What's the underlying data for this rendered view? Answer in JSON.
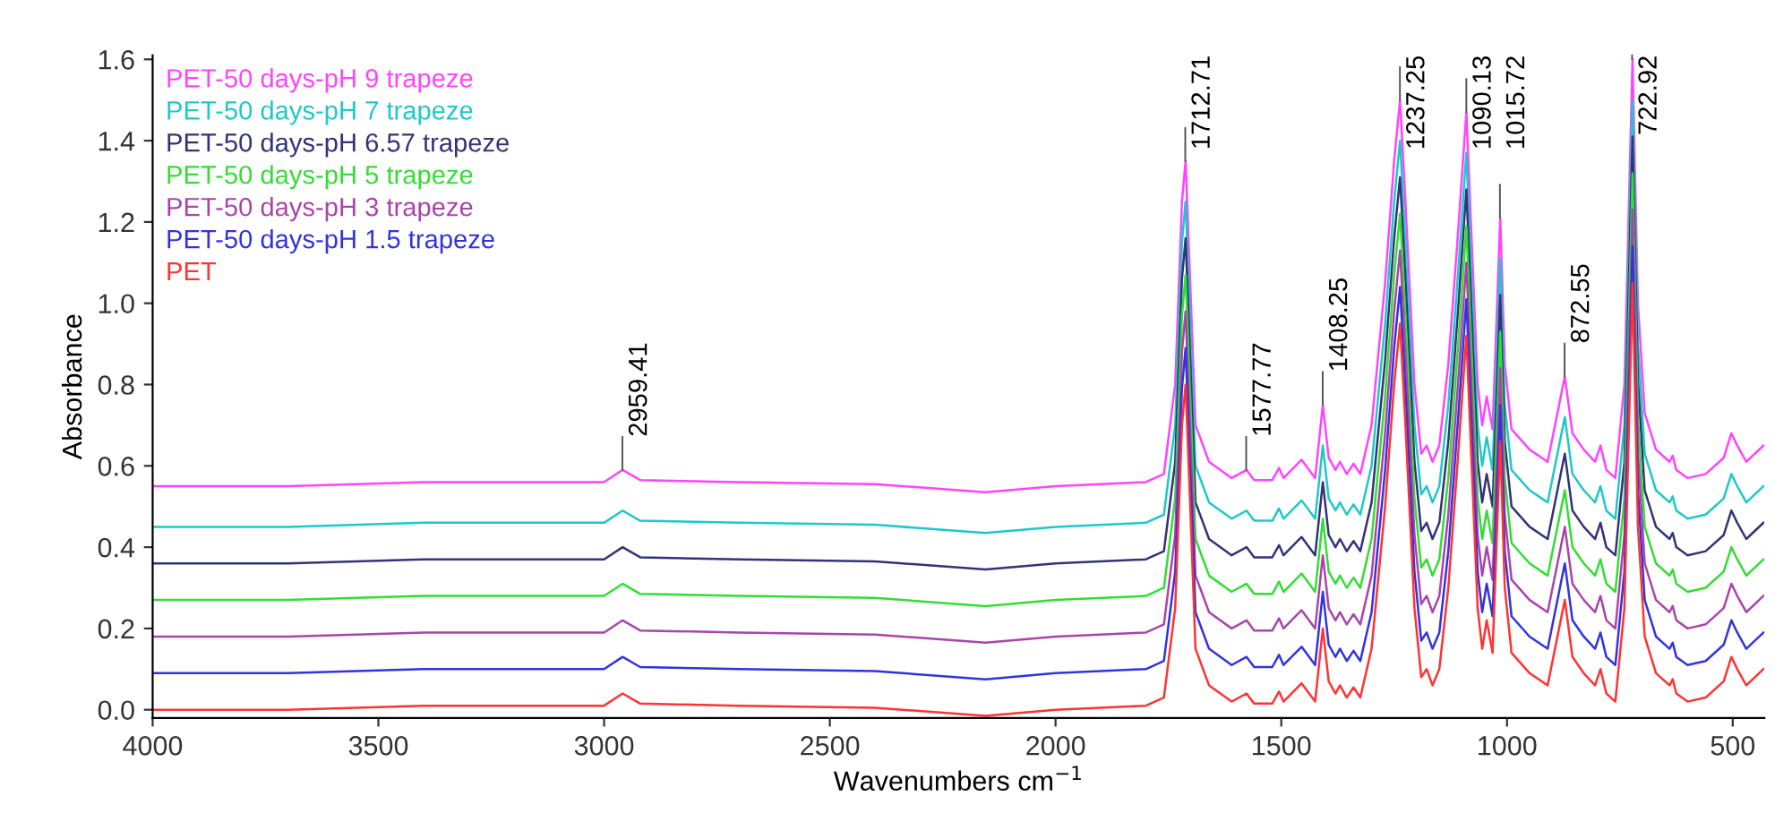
{
  "chart_data": {
    "type": "line",
    "xlabel": "Wavenumbers cm$^{−1}$",
    "ylabel": "Absorbance",
    "x": [
      4000,
      3700,
      3400,
      3000,
      2959,
      2920,
      2700,
      2400,
      2155,
      2000,
      1800,
      1760,
      1735,
      1720,
      1712,
      1700,
      1690,
      1660,
      1610,
      1577,
      1560,
      1520,
      1505,
      1495,
      1455,
      1425,
      1408,
      1395,
      1380,
      1370,
      1355,
      1340,
      1325,
      1300,
      1270,
      1250,
      1237,
      1225,
      1205,
      1190,
      1178,
      1165,
      1150,
      1130,
      1110,
      1090,
      1080,
      1065,
      1055,
      1045,
      1032,
      1015,
      1005,
      990,
      950,
      910,
      872,
      855,
      830,
      805,
      793,
      780,
      760,
      740,
      722,
      710,
      695,
      670,
      640,
      633,
      625,
      600,
      560,
      520,
      503,
      490,
      470,
      432
    ],
    "series": [
      {
        "name": "PET-50 days-pH 9 trapeze",
        "color": "#ff44ff",
        "values": [
          0.55,
          0.55,
          0.56,
          0.56,
          0.59,
          0.565,
          0.56,
          0.555,
          0.535,
          0.55,
          0.56,
          0.58,
          0.8,
          1.25,
          1.35,
          1.0,
          0.7,
          0.61,
          0.57,
          0.59,
          0.565,
          0.565,
          0.595,
          0.57,
          0.615,
          0.57,
          0.75,
          0.62,
          0.59,
          0.61,
          0.58,
          0.605,
          0.58,
          0.7,
          1.05,
          1.35,
          1.5,
          1.25,
          0.8,
          0.63,
          0.65,
          0.61,
          0.65,
          0.85,
          1.15,
          1.47,
          1.2,
          0.8,
          0.7,
          0.77,
          0.69,
          1.21,
          0.85,
          0.69,
          0.64,
          0.61,
          0.82,
          0.68,
          0.64,
          0.61,
          0.65,
          0.59,
          0.57,
          0.8,
          1.6,
          1.0,
          0.73,
          0.64,
          0.61,
          0.625,
          0.59,
          0.57,
          0.58,
          0.62,
          0.68,
          0.65,
          0.61,
          0.65
        ]
      },
      {
        "name": "PET-50 days-pH 7 trapeze",
        "color": "#1fc8c8",
        "values": [
          0.45,
          0.45,
          0.46,
          0.46,
          0.49,
          0.465,
          0.46,
          0.455,
          0.435,
          0.45,
          0.46,
          0.48,
          0.7,
          1.15,
          1.25,
          0.9,
          0.6,
          0.51,
          0.47,
          0.49,
          0.465,
          0.465,
          0.495,
          0.47,
          0.515,
          0.47,
          0.65,
          0.52,
          0.49,
          0.51,
          0.48,
          0.505,
          0.48,
          0.6,
          0.95,
          1.25,
          1.4,
          1.15,
          0.7,
          0.53,
          0.55,
          0.51,
          0.55,
          0.75,
          1.05,
          1.37,
          1.1,
          0.7,
          0.6,
          0.67,
          0.59,
          1.11,
          0.75,
          0.59,
          0.54,
          0.51,
          0.72,
          0.58,
          0.54,
          0.51,
          0.55,
          0.49,
          0.47,
          0.7,
          1.5,
          0.9,
          0.63,
          0.54,
          0.51,
          0.525,
          0.49,
          0.47,
          0.48,
          0.52,
          0.58,
          0.55,
          0.51,
          0.55
        ]
      },
      {
        "name": "PET-50 days-pH 6.57 trapeze",
        "color": "#333377",
        "values": [
          0.36,
          0.36,
          0.37,
          0.37,
          0.4,
          0.375,
          0.37,
          0.365,
          0.345,
          0.36,
          0.37,
          0.39,
          0.61,
          1.06,
          1.16,
          0.81,
          0.51,
          0.42,
          0.38,
          0.4,
          0.375,
          0.375,
          0.405,
          0.38,
          0.425,
          0.38,
          0.56,
          0.43,
          0.4,
          0.42,
          0.39,
          0.415,
          0.39,
          0.51,
          0.86,
          1.16,
          1.31,
          1.06,
          0.61,
          0.44,
          0.46,
          0.42,
          0.46,
          0.66,
          0.96,
          1.28,
          1.01,
          0.61,
          0.51,
          0.58,
          0.5,
          1.02,
          0.66,
          0.5,
          0.45,
          0.42,
          0.63,
          0.49,
          0.45,
          0.42,
          0.46,
          0.4,
          0.38,
          0.61,
          1.41,
          0.81,
          0.54,
          0.45,
          0.42,
          0.435,
          0.4,
          0.38,
          0.39,
          0.43,
          0.49,
          0.46,
          0.42,
          0.46
        ]
      },
      {
        "name": "PET-50 days-pH 5 trapeze",
        "color": "#33dd33",
        "values": [
          0.27,
          0.27,
          0.28,
          0.28,
          0.31,
          0.285,
          0.28,
          0.275,
          0.255,
          0.27,
          0.28,
          0.3,
          0.52,
          0.97,
          1.07,
          0.72,
          0.42,
          0.33,
          0.29,
          0.31,
          0.285,
          0.285,
          0.315,
          0.29,
          0.335,
          0.29,
          0.47,
          0.34,
          0.31,
          0.33,
          0.3,
          0.325,
          0.3,
          0.42,
          0.77,
          1.07,
          1.22,
          0.97,
          0.52,
          0.35,
          0.37,
          0.33,
          0.37,
          0.57,
          0.87,
          1.19,
          0.92,
          0.52,
          0.42,
          0.49,
          0.41,
          0.93,
          0.57,
          0.41,
          0.36,
          0.33,
          0.54,
          0.4,
          0.36,
          0.33,
          0.37,
          0.31,
          0.29,
          0.52,
          1.32,
          0.72,
          0.45,
          0.36,
          0.33,
          0.345,
          0.31,
          0.29,
          0.3,
          0.34,
          0.4,
          0.37,
          0.33,
          0.37
        ]
      },
      {
        "name": "PET-50 days-pH 3 trapeze",
        "color": "#aa44aa",
        "values": [
          0.18,
          0.18,
          0.19,
          0.19,
          0.22,
          0.195,
          0.19,
          0.185,
          0.165,
          0.18,
          0.19,
          0.21,
          0.43,
          0.88,
          0.98,
          0.63,
          0.33,
          0.24,
          0.2,
          0.22,
          0.195,
          0.195,
          0.225,
          0.2,
          0.245,
          0.2,
          0.38,
          0.25,
          0.22,
          0.24,
          0.21,
          0.235,
          0.21,
          0.33,
          0.68,
          0.98,
          1.13,
          0.88,
          0.43,
          0.26,
          0.28,
          0.24,
          0.28,
          0.48,
          0.78,
          1.1,
          0.83,
          0.43,
          0.33,
          0.4,
          0.32,
          0.84,
          0.48,
          0.32,
          0.27,
          0.24,
          0.45,
          0.31,
          0.27,
          0.24,
          0.28,
          0.22,
          0.2,
          0.43,
          1.23,
          0.63,
          0.36,
          0.27,
          0.24,
          0.255,
          0.22,
          0.2,
          0.21,
          0.25,
          0.31,
          0.28,
          0.24,
          0.28
        ]
      },
      {
        "name": "PET-50 days-pH 1.5 trapeze",
        "color": "#3333dd",
        "values": [
          0.09,
          0.09,
          0.1,
          0.1,
          0.13,
          0.105,
          0.1,
          0.095,
          0.075,
          0.09,
          0.1,
          0.12,
          0.34,
          0.79,
          0.89,
          0.54,
          0.24,
          0.15,
          0.11,
          0.13,
          0.105,
          0.105,
          0.135,
          0.11,
          0.155,
          0.11,
          0.29,
          0.16,
          0.13,
          0.15,
          0.12,
          0.145,
          0.12,
          0.24,
          0.59,
          0.89,
          1.04,
          0.79,
          0.34,
          0.17,
          0.19,
          0.15,
          0.19,
          0.39,
          0.69,
          1.01,
          0.74,
          0.34,
          0.24,
          0.31,
          0.23,
          0.75,
          0.39,
          0.23,
          0.18,
          0.15,
          0.36,
          0.22,
          0.18,
          0.15,
          0.19,
          0.13,
          0.11,
          0.34,
          1.14,
          0.54,
          0.27,
          0.18,
          0.15,
          0.165,
          0.13,
          0.11,
          0.12,
          0.16,
          0.22,
          0.19,
          0.15,
          0.19
        ]
      },
      {
        "name": "PET",
        "color": "#ff3333",
        "values": [
          0,
          0,
          0.01,
          0.01,
          0.04,
          0.015,
          0.01,
          0.005,
          -0.015,
          0,
          0.01,
          0.03,
          0.25,
          0.7,
          0.8,
          0.45,
          0.15,
          0.06,
          0.02,
          0.04,
          0.015,
          0.015,
          0.045,
          0.02,
          0.065,
          0.02,
          0.2,
          0.07,
          0.04,
          0.06,
          0.03,
          0.055,
          0.03,
          0.15,
          0.5,
          0.8,
          0.95,
          0.7,
          0.25,
          0.08,
          0.1,
          0.06,
          0.1,
          0.3,
          0.6,
          0.92,
          0.65,
          0.25,
          0.15,
          0.22,
          0.14,
          0.66,
          0.3,
          0.14,
          0.09,
          0.06,
          0.27,
          0.13,
          0.09,
          0.06,
          0.1,
          0.04,
          0.02,
          0.25,
          1.05,
          0.45,
          0.18,
          0.09,
          0.06,
          0.075,
          0.04,
          0.02,
          0.03,
          0.07,
          0.13,
          0.1,
          0.06,
          0.1
        ]
      }
    ],
    "xlim": [
      4000,
      430
    ],
    "xticks": [
      4000,
      3500,
      3000,
      2500,
      2000,
      1500,
      1000,
      500
    ],
    "ylim": [
      -0.02,
      1.61
    ],
    "yticks": [
      {
        "value": 0,
        "label": "0.0"
      },
      {
        "value": 0.2,
        "label": "0.2"
      },
      {
        "value": 0.4,
        "label": "0.4"
      },
      {
        "value": 0.6,
        "label": "0.6"
      },
      {
        "value": 0.8,
        "label": "0.8"
      },
      {
        "value": 1.0,
        "label": "1.0"
      },
      {
        "value": 1.2,
        "label": "1.2"
      },
      {
        "value": 1.4,
        "label": "1.4"
      },
      {
        "value": 1.6,
        "label": "1.6"
      }
    ],
    "annotations": [
      {
        "text": "2959.41",
        "x": 2959.41,
        "y": 0.59
      },
      {
        "text": "1712.71",
        "x": 1712.71,
        "y": 1.35
      },
      {
        "text": "1577.77",
        "x": 1577.77,
        "y": 0.59
      },
      {
        "text": "1408.25",
        "x": 1408.25,
        "y": 0.75
      },
      {
        "text": "1237.25",
        "x": 1237.25,
        "y": 1.5
      },
      {
        "text": "1090.13",
        "x": 1090.13,
        "y": 1.47
      },
      {
        "text": "1015.72",
        "x": 1015.72,
        "y": 1.21
      },
      {
        "text": "872.55",
        "x": 872.55,
        "y": 0.82
      },
      {
        "text": "722.92",
        "x": 722.92,
        "y": 1.6
      }
    ],
    "legend": "top left",
    "grid": false,
    "marker": "none",
    "line_style": "solid"
  }
}
